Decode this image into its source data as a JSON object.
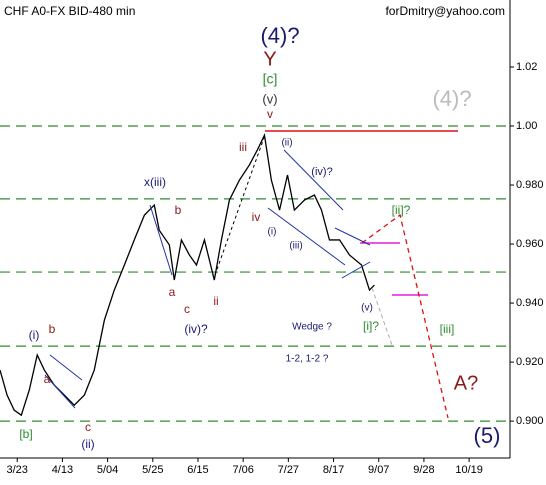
{
  "chart_data": {
    "type": "line",
    "title": "CHF A0-FX BID-480 min",
    "subtitle": "forDmitry@yahoo.com",
    "series": [
      {
        "name": "CHF",
        "color": "#000000",
        "x": [
          -8,
          -4.7,
          -1.4,
          1.9,
          5.6,
          9.3,
          12.6,
          17.2,
          21.9,
          26.5,
          31.2,
          35.8,
          40.5,
          45.1,
          49.8,
          54.4,
          59.1,
          63.7,
          66.0,
          70.7,
          73.0,
          76.3,
          80.0,
          83.3,
          87.0,
          91.6,
          94.9,
          98.6,
          103.3,
          107.9,
          111.6,
          114.9,
          118.1,
          121.9,
          125.6,
          128.8,
          133.5,
          138.1,
          141.4,
          145.1,
          149.8,
          154.4,
          160.0,
          163.7,
          166.0
        ],
        "values": [
          0.9173,
          0.9088,
          0.9037,
          0.902,
          0.9105,
          0.9224,
          0.9173,
          0.9122,
          0.9088,
          0.9054,
          0.9088,
          0.9173,
          0.9342,
          0.9444,
          0.9529,
          0.9614,
          0.9698,
          0.9732,
          0.9647,
          0.9597,
          0.9478,
          0.9614,
          0.9563,
          0.9529,
          0.9614,
          0.9478,
          0.9614,
          0.9749,
          0.9817,
          0.9868,
          0.9919,
          0.9969,
          0.9817,
          0.9715,
          0.9834,
          0.9715,
          0.9749,
          0.9766,
          0.9715,
          0.9614,
          0.9614,
          0.9563,
          0.9529,
          0.9444,
          0.9461
        ]
      }
    ],
    "xlim": [
      -8,
      229
    ],
    "xticks": [
      {
        "value": 0,
        "label": "3/23"
      },
      {
        "value": 21,
        "label": "4/13"
      },
      {
        "value": 42,
        "label": "5/04"
      },
      {
        "value": 63,
        "label": "5/25"
      },
      {
        "value": 84,
        "label": "6/15"
      },
      {
        "value": 105,
        "label": "7/06"
      },
      {
        "value": 126,
        "label": "7/27"
      },
      {
        "value": 147,
        "label": "8/17"
      },
      {
        "value": 168,
        "label": "9/07"
      },
      {
        "value": 189,
        "label": "9/28"
      },
      {
        "value": 210,
        "label": "10/19"
      }
    ],
    "ylim": [
      0.8875,
      1.0427
    ],
    "yticks": [
      {
        "value": 0.9,
        "label": "0.900"
      },
      {
        "value": 0.92,
        "label": "0.920"
      },
      {
        "value": 0.94,
        "label": "0.940"
      },
      {
        "value": 0.96,
        "label": "0.960"
      },
      {
        "value": 0.98,
        "label": "0.980"
      },
      {
        "value": 1.0,
        "label": "1.00"
      },
      1.02
    ],
    "levels": [
      1.0,
      0.9753,
      0.9505,
      0.9254,
      0.9
    ],
    "annotations": [
      "(4)?",
      "Y",
      "[c]",
      "(v)",
      "v",
      "iii",
      "(ii)",
      "(iv)?",
      "x(iii)",
      "b",
      "iv",
      "(i)",
      "(iii)",
      "a",
      "c",
      "ii",
      "(iv)?",
      "(v)",
      "[i]?",
      "[ii]?",
      "[iii]",
      "Wedge ?",
      "1-2, 1-2 ?",
      "A?",
      "(5)",
      "(4)?",
      "(i)",
      "b",
      "a",
      "c",
      "(ii)",
      "[b]"
    ]
  }
}
